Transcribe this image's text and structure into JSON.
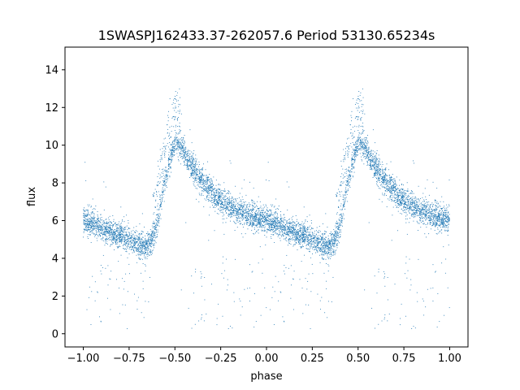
{
  "chart_data": {
    "type": "scatter",
    "title": "1SWASPJ162433.37-262057.6 Period 53130.65234s",
    "xlabel": "phase",
    "ylabel": "flux",
    "xlim": [
      -1.1,
      1.1
    ],
    "ylim": [
      -0.7,
      15.2
    ],
    "xticks": [
      -1.0,
      -0.75,
      -0.5,
      -0.25,
      0.0,
      0.25,
      0.5,
      0.75,
      1.0
    ],
    "xtick_labels": [
      "−1.00",
      "−0.75",
      "−0.50",
      "−0.25",
      "0.00",
      "0.25",
      "0.50",
      "0.75",
      "1.00"
    ],
    "yticks": [
      0,
      2,
      4,
      6,
      8,
      10,
      12,
      14
    ],
    "ytick_labels": [
      "0",
      "2",
      "4",
      "6",
      "8",
      "10",
      "12",
      "14"
    ],
    "grid": false,
    "marker_color": "#1f77b4",
    "series": [
      {
        "name": "",
        "light_curve_profile": {
          "phase": [
            0.0,
            0.05,
            0.1,
            0.15,
            0.2,
            0.25,
            0.3,
            0.33,
            0.37,
            0.4,
            0.43,
            0.46,
            0.5,
            0.53,
            0.57,
            0.62,
            0.67,
            0.72,
            0.77,
            0.82,
            0.87,
            0.92,
            0.96,
            1.0
          ],
          "flux": [
            6.0,
            5.8,
            5.6,
            5.4,
            5.2,
            4.9,
            4.7,
            4.6,
            4.8,
            5.6,
            7.2,
            8.8,
            10.2,
            10.0,
            9.2,
            8.5,
            7.9,
            7.3,
            6.9,
            6.6,
            6.4,
            6.2,
            6.1,
            6.0
          ],
          "scatter_flux": 0.35,
          "high_state_phase_range": [
            0.38,
            0.53
          ],
          "low_outlier_flux_range": [
            0.2,
            4.0
          ]
        }
      }
    ]
  }
}
